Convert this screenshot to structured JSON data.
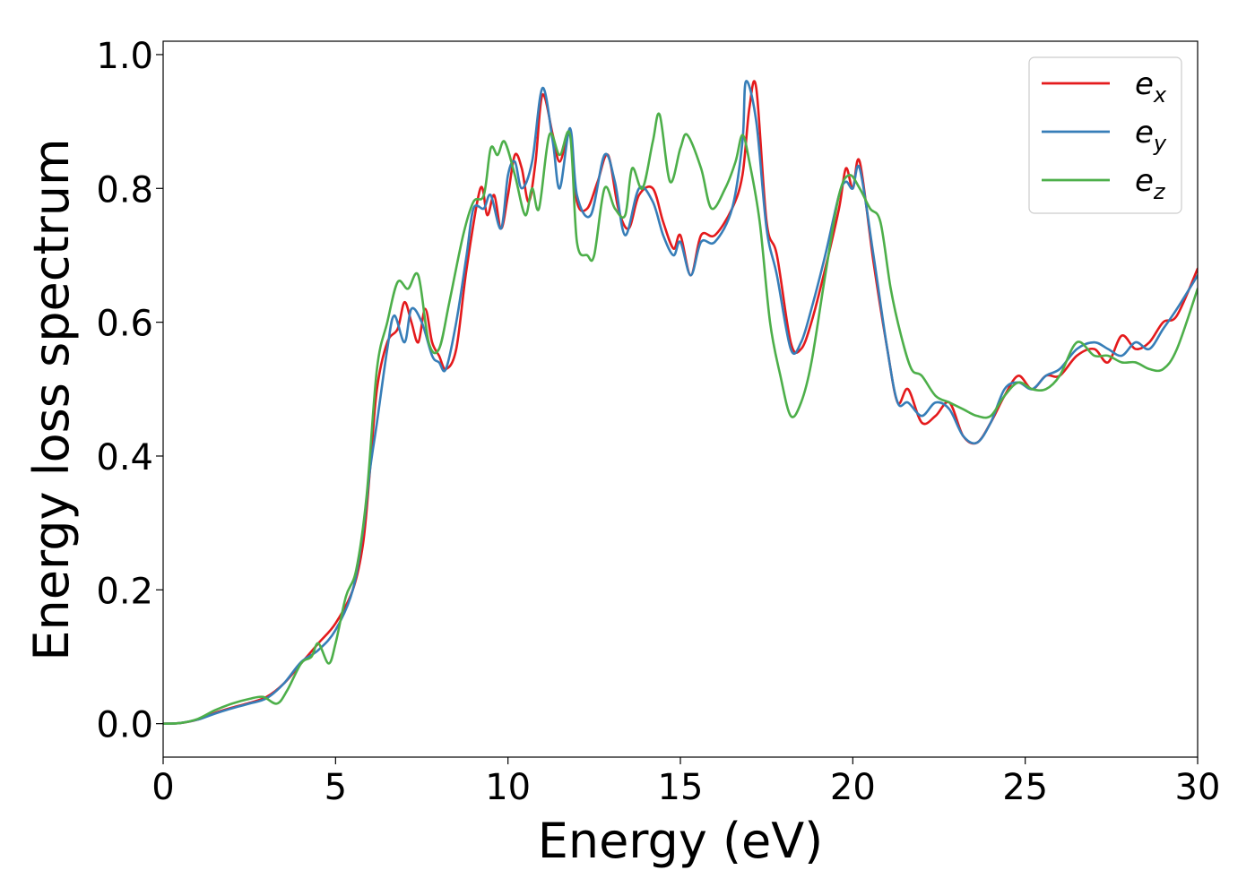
{
  "chart_data": {
    "type": "line",
    "title": "",
    "xlabel": "Energy (eV)",
    "ylabel": "Energy loss spectrum",
    "xlim": [
      0,
      30
    ],
    "ylim": [
      -0.05,
      1.02
    ],
    "xticks": [
      0,
      5,
      10,
      15,
      20,
      25,
      30
    ],
    "xtick_labels": [
      "0",
      "5",
      "10",
      "15",
      "20",
      "25",
      "30"
    ],
    "yticks": [
      0.0,
      0.2,
      0.4,
      0.6,
      0.8,
      1.0
    ],
    "ytick_labels": [
      "0.0",
      "0.2",
      "0.4",
      "0.6",
      "0.8",
      "1.0"
    ],
    "grid": false,
    "legend_position": "top-right",
    "series": [
      {
        "name": "ex",
        "legend_main": "e",
        "legend_sub": "x",
        "color": "#e41a1c",
        "points": [
          [
            0,
            0
          ],
          [
            0.5,
            0.001
          ],
          [
            1,
            0.006
          ],
          [
            1.5,
            0.016
          ],
          [
            2,
            0.024
          ],
          [
            2.5,
            0.031
          ],
          [
            3,
            0.04
          ],
          [
            3.5,
            0.06
          ],
          [
            4,
            0.09
          ],
          [
            4.5,
            0.12
          ],
          [
            5,
            0.15
          ],
          [
            5.5,
            0.2
          ],
          [
            5.8,
            0.27
          ],
          [
            6,
            0.38
          ],
          [
            6.2,
            0.5
          ],
          [
            6.5,
            0.57
          ],
          [
            6.8,
            0.59
          ],
          [
            7,
            0.63
          ],
          [
            7.2,
            0.6
          ],
          [
            7.4,
            0.57
          ],
          [
            7.6,
            0.62
          ],
          [
            7.8,
            0.57
          ],
          [
            8,
            0.55
          ],
          [
            8.2,
            0.53
          ],
          [
            8.5,
            0.56
          ],
          [
            8.8,
            0.68
          ],
          [
            9.2,
            0.8
          ],
          [
            9.4,
            0.76
          ],
          [
            9.6,
            0.79
          ],
          [
            9.8,
            0.74
          ],
          [
            10,
            0.79
          ],
          [
            10.2,
            0.85
          ],
          [
            10.4,
            0.83
          ],
          [
            10.6,
            0.78
          ],
          [
            10.8,
            0.84
          ],
          [
            11,
            0.94
          ],
          [
            11.3,
            0.88
          ],
          [
            11.5,
            0.84
          ],
          [
            11.8,
            0.88
          ],
          [
            12,
            0.78
          ],
          [
            12.3,
            0.77
          ],
          [
            12.6,
            0.81
          ],
          [
            12.9,
            0.85
          ],
          [
            13.2,
            0.77
          ],
          [
            13.5,
            0.74
          ],
          [
            13.8,
            0.79
          ],
          [
            14.2,
            0.8
          ],
          [
            14.5,
            0.75
          ],
          [
            14.8,
            0.71
          ],
          [
            15,
            0.73
          ],
          [
            15.3,
            0.67
          ],
          [
            15.6,
            0.73
          ],
          [
            16,
            0.73
          ],
          [
            16.5,
            0.77
          ],
          [
            16.8,
            0.82
          ],
          [
            17,
            0.92
          ],
          [
            17.2,
            0.95
          ],
          [
            17.5,
            0.75
          ],
          [
            17.8,
            0.7
          ],
          [
            18.2,
            0.57
          ],
          [
            18.5,
            0.56
          ],
          [
            18.8,
            0.6
          ],
          [
            19.2,
            0.68
          ],
          [
            19.6,
            0.77
          ],
          [
            19.8,
            0.83
          ],
          [
            20,
            0.8
          ],
          [
            20.2,
            0.84
          ],
          [
            20.6,
            0.69
          ],
          [
            21,
            0.56
          ],
          [
            21.3,
            0.48
          ],
          [
            21.6,
            0.5
          ],
          [
            22,
            0.45
          ],
          [
            22.4,
            0.46
          ],
          [
            22.8,
            0.48
          ],
          [
            23.2,
            0.43
          ],
          [
            23.6,
            0.42
          ],
          [
            24,
            0.45
          ],
          [
            24.4,
            0.49
          ],
          [
            24.8,
            0.52
          ],
          [
            25.2,
            0.5
          ],
          [
            25.6,
            0.52
          ],
          [
            26,
            0.52
          ],
          [
            26.5,
            0.55
          ],
          [
            27,
            0.56
          ],
          [
            27.4,
            0.54
          ],
          [
            27.8,
            0.58
          ],
          [
            28.2,
            0.56
          ],
          [
            28.6,
            0.57
          ],
          [
            29,
            0.6
          ],
          [
            29.4,
            0.61
          ],
          [
            30,
            0.68
          ]
        ]
      },
      {
        "name": "ey",
        "legend_main": "e",
        "legend_sub": "y",
        "color": "#377eb8",
        "points": [
          [
            0,
            0
          ],
          [
            0.5,
            0.001
          ],
          [
            1,
            0.006
          ],
          [
            1.5,
            0.015
          ],
          [
            2,
            0.023
          ],
          [
            2.5,
            0.03
          ],
          [
            3,
            0.038
          ],
          [
            3.5,
            0.06
          ],
          [
            4,
            0.092
          ],
          [
            4.5,
            0.11
          ],
          [
            5,
            0.14
          ],
          [
            5.5,
            0.2
          ],
          [
            5.8,
            0.29
          ],
          [
            6,
            0.38
          ],
          [
            6.2,
            0.45
          ],
          [
            6.5,
            0.56
          ],
          [
            6.7,
            0.61
          ],
          [
            7,
            0.57
          ],
          [
            7.2,
            0.62
          ],
          [
            7.5,
            0.6
          ],
          [
            7.8,
            0.55
          ],
          [
            8,
            0.54
          ],
          [
            8.2,
            0.53
          ],
          [
            8.5,
            0.6
          ],
          [
            8.8,
            0.7
          ],
          [
            9,
            0.77
          ],
          [
            9.3,
            0.77
          ],
          [
            9.5,
            0.79
          ],
          [
            9.8,
            0.74
          ],
          [
            10,
            0.82
          ],
          [
            10.2,
            0.84
          ],
          [
            10.4,
            0.8
          ],
          [
            10.7,
            0.84
          ],
          [
            11,
            0.95
          ],
          [
            11.3,
            0.87
          ],
          [
            11.5,
            0.8
          ],
          [
            11.8,
            0.89
          ],
          [
            12,
            0.79
          ],
          [
            12.4,
            0.76
          ],
          [
            12.8,
            0.85
          ],
          [
            13.1,
            0.81
          ],
          [
            13.4,
            0.73
          ],
          [
            13.8,
            0.8
          ],
          [
            14.2,
            0.78
          ],
          [
            14.5,
            0.73
          ],
          [
            14.8,
            0.7
          ],
          [
            15,
            0.72
          ],
          [
            15.3,
            0.67
          ],
          [
            15.6,
            0.72
          ],
          [
            16,
            0.72
          ],
          [
            16.5,
            0.77
          ],
          [
            16.8,
            0.87
          ],
          [
            16.9,
            0.96
          ],
          [
            17.2,
            0.9
          ],
          [
            17.5,
            0.74
          ],
          [
            17.8,
            0.67
          ],
          [
            18.2,
            0.56
          ],
          [
            18.5,
            0.57
          ],
          [
            18.8,
            0.62
          ],
          [
            19.2,
            0.7
          ],
          [
            19.6,
            0.79
          ],
          [
            19.8,
            0.81
          ],
          [
            20,
            0.8
          ],
          [
            20.2,
            0.83
          ],
          [
            20.6,
            0.7
          ],
          [
            21,
            0.56
          ],
          [
            21.3,
            0.48
          ],
          [
            21.6,
            0.48
          ],
          [
            22,
            0.46
          ],
          [
            22.4,
            0.48
          ],
          [
            22.8,
            0.47
          ],
          [
            23.2,
            0.43
          ],
          [
            23.6,
            0.42
          ],
          [
            24,
            0.45
          ],
          [
            24.4,
            0.5
          ],
          [
            24.8,
            0.51
          ],
          [
            25.2,
            0.5
          ],
          [
            25.6,
            0.52
          ],
          [
            26,
            0.53
          ],
          [
            26.5,
            0.56
          ],
          [
            27,
            0.57
          ],
          [
            27.4,
            0.56
          ],
          [
            27.8,
            0.55
          ],
          [
            28.2,
            0.57
          ],
          [
            28.6,
            0.56
          ],
          [
            29,
            0.59
          ],
          [
            29.4,
            0.62
          ],
          [
            30,
            0.67
          ]
        ]
      },
      {
        "name": "ez",
        "legend_main": "e",
        "legend_sub": "z",
        "color": "#4daf4a",
        "points": [
          [
            0,
            0
          ],
          [
            0.5,
            0.001
          ],
          [
            1,
            0.007
          ],
          [
            1.5,
            0.02
          ],
          [
            2,
            0.03
          ],
          [
            2.5,
            0.037
          ],
          [
            2.9,
            0.04
          ],
          [
            3.3,
            0.03
          ],
          [
            3.6,
            0.05
          ],
          [
            4,
            0.09
          ],
          [
            4.3,
            0.1
          ],
          [
            4.5,
            0.12
          ],
          [
            4.8,
            0.09
          ],
          [
            5,
            0.12
          ],
          [
            5.3,
            0.19
          ],
          [
            5.6,
            0.23
          ],
          [
            5.9,
            0.34
          ],
          [
            6.2,
            0.53
          ],
          [
            6.5,
            0.6
          ],
          [
            6.8,
            0.66
          ],
          [
            7.1,
            0.65
          ],
          [
            7.4,
            0.67
          ],
          [
            7.7,
            0.57
          ],
          [
            8,
            0.56
          ],
          [
            8.3,
            0.63
          ],
          [
            8.7,
            0.73
          ],
          [
            9,
            0.78
          ],
          [
            9.3,
            0.79
          ],
          [
            9.5,
            0.86
          ],
          [
            9.7,
            0.85
          ],
          [
            9.9,
            0.87
          ],
          [
            10.2,
            0.82
          ],
          [
            10.5,
            0.76
          ],
          [
            10.7,
            0.8
          ],
          [
            10.9,
            0.77
          ],
          [
            11.2,
            0.88
          ],
          [
            11.5,
            0.85
          ],
          [
            11.8,
            0.88
          ],
          [
            12,
            0.72
          ],
          [
            12.3,
            0.7
          ],
          [
            12.5,
            0.7
          ],
          [
            12.8,
            0.8
          ],
          [
            13.1,
            0.77
          ],
          [
            13.4,
            0.76
          ],
          [
            13.6,
            0.83
          ],
          [
            13.9,
            0.8
          ],
          [
            14.2,
            0.87
          ],
          [
            14.4,
            0.91
          ],
          [
            14.7,
            0.81
          ],
          [
            15,
            0.86
          ],
          [
            15.2,
            0.88
          ],
          [
            15.6,
            0.83
          ],
          [
            15.9,
            0.77
          ],
          [
            16.3,
            0.8
          ],
          [
            16.6,
            0.84
          ],
          [
            16.8,
            0.88
          ],
          [
            17,
            0.84
          ],
          [
            17.3,
            0.75
          ],
          [
            17.6,
            0.6
          ],
          [
            17.9,
            0.52
          ],
          [
            18.2,
            0.46
          ],
          [
            18.5,
            0.48
          ],
          [
            18.8,
            0.54
          ],
          [
            19.2,
            0.67
          ],
          [
            19.6,
            0.79
          ],
          [
            19.9,
            0.82
          ],
          [
            20.2,
            0.8
          ],
          [
            20.5,
            0.77
          ],
          [
            20.8,
            0.75
          ],
          [
            21.1,
            0.65
          ],
          [
            21.4,
            0.58
          ],
          [
            21.7,
            0.53
          ],
          [
            22,
            0.52
          ],
          [
            22.4,
            0.49
          ],
          [
            22.8,
            0.48
          ],
          [
            23.2,
            0.47
          ],
          [
            23.6,
            0.46
          ],
          [
            24,
            0.46
          ],
          [
            24.4,
            0.49
          ],
          [
            24.8,
            0.51
          ],
          [
            25.2,
            0.5
          ],
          [
            25.6,
            0.5
          ],
          [
            26,
            0.52
          ],
          [
            26.5,
            0.57
          ],
          [
            27,
            0.55
          ],
          [
            27.4,
            0.55
          ],
          [
            27.8,
            0.54
          ],
          [
            28.2,
            0.54
          ],
          [
            28.6,
            0.53
          ],
          [
            29,
            0.53
          ],
          [
            29.4,
            0.56
          ],
          [
            30,
            0.65
          ]
        ]
      }
    ]
  }
}
